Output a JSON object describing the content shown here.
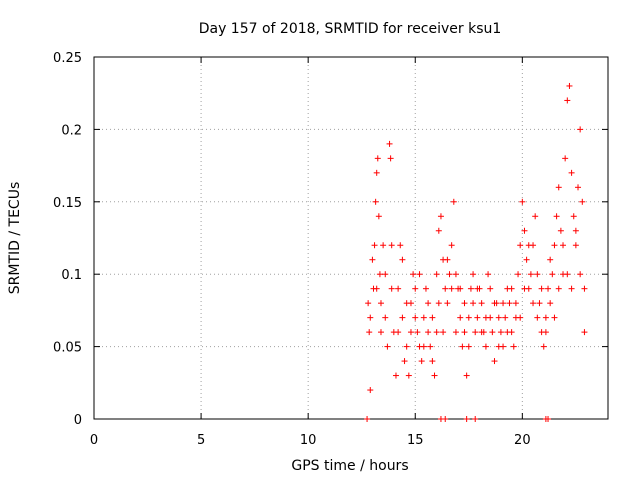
{
  "chart_data": {
    "type": "scatter",
    "title": "Day 157 of 2018, SRMTID for receiver ksu1",
    "xlabel": "GPS time / hours",
    "ylabel": "SRMTID / TECUs",
    "xlim": [
      0,
      24
    ],
    "ylim": [
      0,
      0.25
    ],
    "x_ticks": [
      0,
      5,
      10,
      15,
      20
    ],
    "x_tick_labels": [
      "0",
      "5",
      "10",
      "15",
      "20"
    ],
    "y_ticks": [
      0,
      0.05,
      0.1,
      0.15,
      0.2,
      0.25
    ],
    "y_tick_labels": [
      "0",
      "0.05",
      "0.1",
      "0.15",
      "0.2",
      "0.25"
    ],
    "grid": true,
    "marker": "plus",
    "series": [
      {
        "name": "SRMTID",
        "color": "#ff0000",
        "points": [
          [
            12.75,
            0.0
          ],
          [
            12.8,
            0.08
          ],
          [
            12.85,
            0.06
          ],
          [
            12.9,
            0.02
          ],
          [
            13.0,
            0.11
          ],
          [
            13.05,
            0.09
          ],
          [
            13.1,
            0.12
          ],
          [
            13.15,
            0.15
          ],
          [
            13.2,
            0.17
          ],
          [
            13.25,
            0.18
          ],
          [
            13.3,
            0.14
          ],
          [
            13.35,
            0.1
          ],
          [
            13.4,
            0.08
          ],
          [
            13.5,
            0.12
          ],
          [
            13.6,
            0.07
          ],
          [
            13.7,
            0.05
          ],
          [
            13.8,
            0.19
          ],
          [
            13.85,
            0.18
          ],
          [
            13.9,
            0.12
          ],
          [
            14.0,
            0.06
          ],
          [
            14.1,
            0.03
          ],
          [
            14.2,
            0.09
          ],
          [
            14.3,
            0.12
          ],
          [
            14.4,
            0.07
          ],
          [
            14.5,
            0.04
          ],
          [
            14.6,
            0.05
          ],
          [
            14.7,
            0.03
          ],
          [
            14.8,
            0.08
          ],
          [
            14.9,
            0.1
          ],
          [
            15.0,
            0.07
          ],
          [
            15.1,
            0.06
          ],
          [
            15.2,
            0.05
          ],
          [
            15.3,
            0.04
          ],
          [
            15.4,
            0.07
          ],
          [
            15.5,
            0.09
          ],
          [
            15.6,
            0.06
          ],
          [
            15.7,
            0.05
          ],
          [
            15.8,
            0.04
          ],
          [
            15.9,
            0.03
          ],
          [
            16.0,
            0.06
          ],
          [
            16.0,
            0.1
          ],
          [
            16.1,
            0.13
          ],
          [
            16.2,
            0.14
          ],
          [
            16.3,
            0.11
          ],
          [
            16.4,
            0.09
          ],
          [
            16.5,
            0.08
          ],
          [
            16.6,
            0.1
          ],
          [
            16.7,
            0.12
          ],
          [
            16.8,
            0.15
          ],
          [
            16.9,
            0.1
          ],
          [
            17.0,
            0.09
          ],
          [
            17.1,
            0.07
          ],
          [
            17.2,
            0.05
          ],
          [
            17.3,
            0.06
          ],
          [
            17.4,
            0.03
          ],
          [
            17.5,
            0.07
          ],
          [
            17.6,
            0.09
          ],
          [
            17.7,
            0.08
          ],
          [
            17.8,
            0.06
          ],
          [
            17.9,
            0.07
          ],
          [
            18.0,
            0.09
          ],
          [
            18.1,
            0.08
          ],
          [
            18.2,
            0.06
          ],
          [
            18.3,
            0.05
          ],
          [
            18.4,
            0.1
          ],
          [
            18.5,
            0.07
          ],
          [
            18.6,
            0.06
          ],
          [
            18.7,
            0.04
          ],
          [
            18.8,
            0.08
          ],
          [
            18.9,
            0.07
          ],
          [
            19.0,
            0.06
          ],
          [
            19.1,
            0.05
          ],
          [
            19.2,
            0.07
          ],
          [
            19.3,
            0.09
          ],
          [
            19.4,
            0.08
          ],
          [
            19.5,
            0.06
          ],
          [
            19.6,
            0.05
          ],
          [
            19.7,
            0.07
          ],
          [
            19.8,
            0.1
          ],
          [
            19.9,
            0.12
          ],
          [
            20.0,
            0.15
          ],
          [
            20.1,
            0.13
          ],
          [
            20.2,
            0.11
          ],
          [
            20.3,
            0.09
          ],
          [
            20.4,
            0.1
          ],
          [
            20.5,
            0.12
          ],
          [
            20.6,
            0.14
          ],
          [
            20.7,
            0.1
          ],
          [
            20.8,
            0.08
          ],
          [
            20.9,
            0.06
          ],
          [
            21.0,
            0.05
          ],
          [
            21.1,
            0.07
          ],
          [
            21.2,
            0.09
          ],
          [
            21.3,
            0.11
          ],
          [
            21.4,
            0.1
          ],
          [
            21.5,
            0.12
          ],
          [
            21.6,
            0.14
          ],
          [
            21.7,
            0.16
          ],
          [
            21.8,
            0.13
          ],
          [
            21.9,
            0.1
          ],
          [
            22.0,
            0.18
          ],
          [
            22.1,
            0.22
          ],
          [
            22.2,
            0.23
          ],
          [
            22.3,
            0.17
          ],
          [
            22.4,
            0.14
          ],
          [
            22.5,
            0.12
          ],
          [
            22.6,
            0.16
          ],
          [
            22.7,
            0.2
          ],
          [
            22.8,
            0.15
          ],
          [
            22.9,
            0.09
          ],
          [
            12.9,
            0.07
          ],
          [
            13.2,
            0.09
          ],
          [
            13.4,
            0.06
          ],
          [
            13.6,
            0.1
          ],
          [
            13.9,
            0.09
          ],
          [
            14.2,
            0.06
          ],
          [
            14.4,
            0.11
          ],
          [
            14.6,
            0.08
          ],
          [
            14.8,
            0.06
          ],
          [
            15.0,
            0.09
          ],
          [
            15.2,
            0.1
          ],
          [
            15.4,
            0.05
          ],
          [
            15.6,
            0.08
          ],
          [
            15.8,
            0.07
          ],
          [
            16.1,
            0.08
          ],
          [
            16.3,
            0.06
          ],
          [
            16.5,
            0.11
          ],
          [
            16.7,
            0.09
          ],
          [
            16.9,
            0.06
          ],
          [
            17.1,
            0.09
          ],
          [
            17.3,
            0.08
          ],
          [
            17.5,
            0.05
          ],
          [
            17.7,
            0.1
          ],
          [
            17.9,
            0.09
          ],
          [
            18.1,
            0.06
          ],
          [
            18.3,
            0.07
          ],
          [
            18.5,
            0.09
          ],
          [
            18.7,
            0.08
          ],
          [
            18.9,
            0.05
          ],
          [
            19.1,
            0.08
          ],
          [
            19.3,
            0.06
          ],
          [
            19.5,
            0.09
          ],
          [
            19.7,
            0.08
          ],
          [
            19.9,
            0.07
          ],
          [
            20.1,
            0.09
          ],
          [
            20.3,
            0.12
          ],
          [
            20.5,
            0.08
          ],
          [
            20.7,
            0.07
          ],
          [
            20.9,
            0.09
          ],
          [
            21.1,
            0.06
          ],
          [
            21.3,
            0.08
          ],
          [
            21.5,
            0.07
          ],
          [
            21.7,
            0.09
          ],
          [
            21.9,
            0.12
          ],
          [
            22.1,
            0.1
          ],
          [
            22.3,
            0.09
          ],
          [
            22.5,
            0.13
          ],
          [
            22.7,
            0.1
          ],
          [
            22.9,
            0.06
          ],
          [
            16.2,
            0.0
          ],
          [
            16.4,
            0.0
          ],
          [
            17.4,
            0.0
          ],
          [
            17.8,
            0.0
          ],
          [
            21.1,
            0.0
          ],
          [
            21.2,
            0.0
          ]
        ]
      }
    ]
  }
}
